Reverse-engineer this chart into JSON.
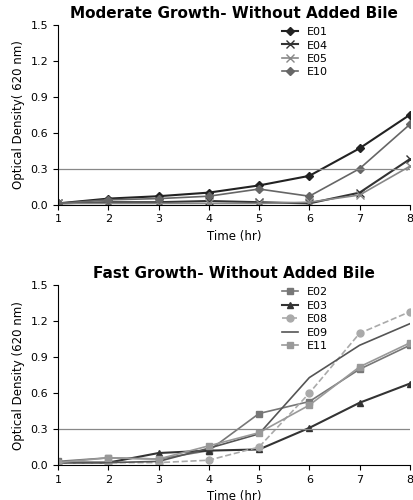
{
  "top_title": "Moderate Growth- Without Added Bile",
  "bottom_title": "Fast Growth- Without Added Bile",
  "xlabel": "Time (hr)",
  "ylabel_top": "Optical Density( 620 nm)",
  "ylabel_bottom": "Optical Density (620 nm)",
  "xvals": [
    1,
    2,
    3,
    4,
    5,
    6,
    7,
    8
  ],
  "ylim": [
    0,
    1.5
  ],
  "hline_y": 0.3,
  "top_series": {
    "E01": {
      "y": [
        0.01,
        0.05,
        0.07,
        0.1,
        0.16,
        0.24,
        0.47,
        0.75
      ],
      "color": "#222222",
      "marker": "D",
      "linestyle": "-",
      "markersize": 4,
      "linewidth": 1.5
    },
    "E04": {
      "y": [
        0.01,
        0.02,
        0.02,
        0.03,
        0.02,
        0.01,
        0.1,
        0.38
      ],
      "color": "#333333",
      "marker": "x",
      "linestyle": "-",
      "markersize": 6,
      "linewidth": 1.5
    },
    "E05": {
      "y": [
        0.01,
        0.01,
        0.01,
        0.01,
        0.01,
        0.02,
        0.08,
        0.32
      ],
      "color": "#888888",
      "marker": "x",
      "linestyle": "-",
      "markersize": 6,
      "linewidth": 1.2
    },
    "E10": {
      "y": [
        0.01,
        0.04,
        0.05,
        0.07,
        0.13,
        0.07,
        0.3,
        0.67
      ],
      "color": "#666666",
      "marker": "D",
      "linestyle": "-",
      "markersize": 4,
      "linewidth": 1.2
    }
  },
  "bottom_series": {
    "E02": {
      "y": [
        0.03,
        0.06,
        0.05,
        0.12,
        0.43,
        0.53,
        0.8,
        1.0
      ],
      "color": "#777777",
      "marker": "s",
      "linestyle": "-",
      "markersize": 4,
      "linewidth": 1.2
    },
    "E03": {
      "y": [
        0.02,
        0.02,
        0.1,
        0.12,
        0.13,
        0.31,
        0.52,
        0.68
      ],
      "color": "#333333",
      "marker": "^",
      "linestyle": "-",
      "markersize": 4,
      "linewidth": 1.5
    },
    "E08": {
      "y": [
        0.02,
        0.02,
        0.02,
        0.04,
        0.15,
        0.6,
        1.1,
        1.28
      ],
      "color": "#aaaaaa",
      "marker": "o",
      "linestyle": "--",
      "markersize": 5,
      "linewidth": 1.2
    },
    "E09": {
      "y": [
        0.02,
        0.02,
        0.03,
        0.14,
        0.26,
        0.73,
        1.0,
        1.18
      ],
      "color": "#555555",
      "marker": null,
      "linestyle": "-",
      "markersize": 4,
      "linewidth": 1.2
    },
    "E11": {
      "y": [
        0.02,
        0.06,
        0.05,
        0.16,
        0.27,
        0.5,
        0.82,
        1.02
      ],
      "color": "#999999",
      "marker": "s",
      "linestyle": "-",
      "markersize": 4,
      "linewidth": 1.2
    }
  },
  "background_color": "#ffffff",
  "hline_color": "#888888",
  "title_fontsize": 11,
  "label_fontsize": 8.5,
  "tick_fontsize": 8,
  "legend_fontsize": 8
}
